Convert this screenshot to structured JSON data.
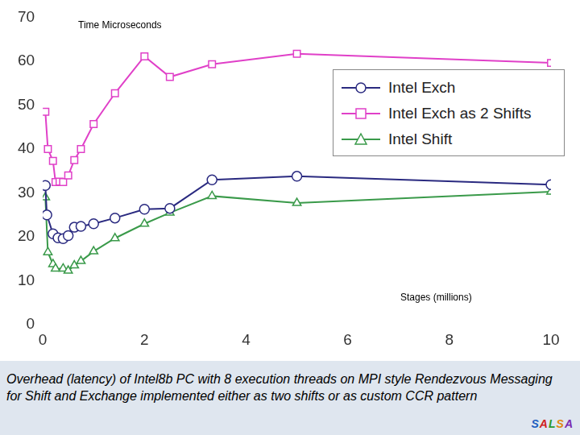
{
  "chart_data": {
    "type": "line",
    "ylabel": "Time Microseconds",
    "xlabel": "Stages (millions)",
    "caption": "Overhead (latency) of Intel8b PC with 8 execution threads on MPI style Rendezvous Messaging for Shift and Exchange implemented either as two shifts or as custom CCR pattern",
    "logo": "SALSA",
    "series": [
      {
        "name": "Intel Exch",
        "color": "#2a2a80",
        "marker": "circle",
        "x": [
          0.05,
          0.08,
          0.2,
          0.3,
          0.4,
          0.5,
          0.62,
          0.75,
          1.0,
          1.42,
          2.0,
          2.5,
          3.33,
          5.0,
          10.0
        ],
        "values": [
          31.7,
          25.0,
          20.7,
          19.8,
          19.6,
          20.3,
          22.2,
          22.4,
          23.0,
          24.3,
          26.3,
          26.5,
          33.0,
          33.8,
          31.9
        ]
      },
      {
        "name": "Intel Exch as 2 Shifts",
        "color": "#e040c8",
        "marker": "square",
        "x": [
          0.05,
          0.1,
          0.2,
          0.25,
          0.33,
          0.4,
          0.5,
          0.62,
          0.75,
          1.0,
          1.42,
          2.0,
          2.5,
          3.33,
          5.0,
          10.0
        ],
        "values": [
          48.5,
          40.0,
          37.3,
          32.5,
          32.6,
          32.5,
          34.0,
          37.5,
          40.0,
          45.7,
          52.7,
          61.1,
          56.4,
          59.3,
          61.7,
          59.6
        ]
      },
      {
        "name": "Intel Shift",
        "color": "#3a9a4a",
        "marker": "triangle",
        "x": [
          0.05,
          0.1,
          0.2,
          0.25,
          0.4,
          0.5,
          0.62,
          0.75,
          1.0,
          1.42,
          2.0,
          2.5,
          3.33,
          5.0,
          10.0
        ],
        "values": [
          29.0,
          16.5,
          13.8,
          12.8,
          12.8,
          12.3,
          13.5,
          14.5,
          16.7,
          19.7,
          23.0,
          25.5,
          29.3,
          27.7,
          30.3
        ]
      }
    ],
    "xlim": [
      0,
      10
    ],
    "xticks": [
      0,
      2,
      4,
      6,
      8,
      10
    ],
    "ylim": [
      0,
      70
    ],
    "yticks": [
      0,
      10,
      20,
      30,
      40,
      50,
      60,
      70
    ],
    "grid": false,
    "legend": "upper right"
  }
}
